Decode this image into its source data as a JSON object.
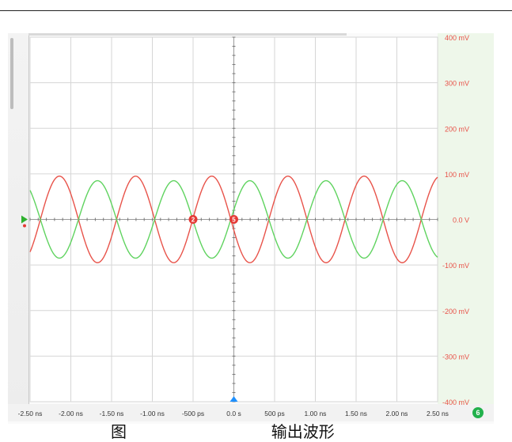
{
  "chart_data": {
    "type": "line",
    "x_tick_labels": [
      "-2.50 ns",
      "-2.00 ns",
      "-1.50 ns",
      "-1.00 ns",
      "-500 ps",
      "0.0 s",
      "500 ps",
      "1.00 ns",
      "1.50 ns",
      "2.00 ns",
      "2.50 ns"
    ],
    "y_tick_labels": [
      "400 mV",
      "300 mV",
      "200 mV",
      "100 mV",
      "0.0 V",
      "-100 mV",
      "-200 mV",
      "-300 mV",
      "-400 mV"
    ],
    "xlim_ns": [
      -2.5,
      2.5
    ],
    "ylim_mV": [
      -400,
      400
    ],
    "grid": true,
    "series": [
      {
        "color": "#e8534a",
        "amplitude_mV": 95,
        "period_ns": 1.0,
        "phase_ns": 0.0,
        "sign": -1
      },
      {
        "color": "#5fd35f",
        "amplitude_mV": 85,
        "period_ns": 1.0,
        "phase_ns": 0.0,
        "sign": 1
      }
    ],
    "markers": [
      {
        "label": "2",
        "x_ns": -0.5,
        "y_mV": 0
      },
      {
        "label": "5",
        "x_ns": 0.0,
        "y_mV": 0
      }
    ]
  },
  "status_badge": "6",
  "caption": {
    "prefix": "图",
    "suffix": "输出波形"
  },
  "colors": {
    "grid": "#d6d6d6",
    "axis_text": "#e8534a",
    "tick_text": "#333333"
  }
}
